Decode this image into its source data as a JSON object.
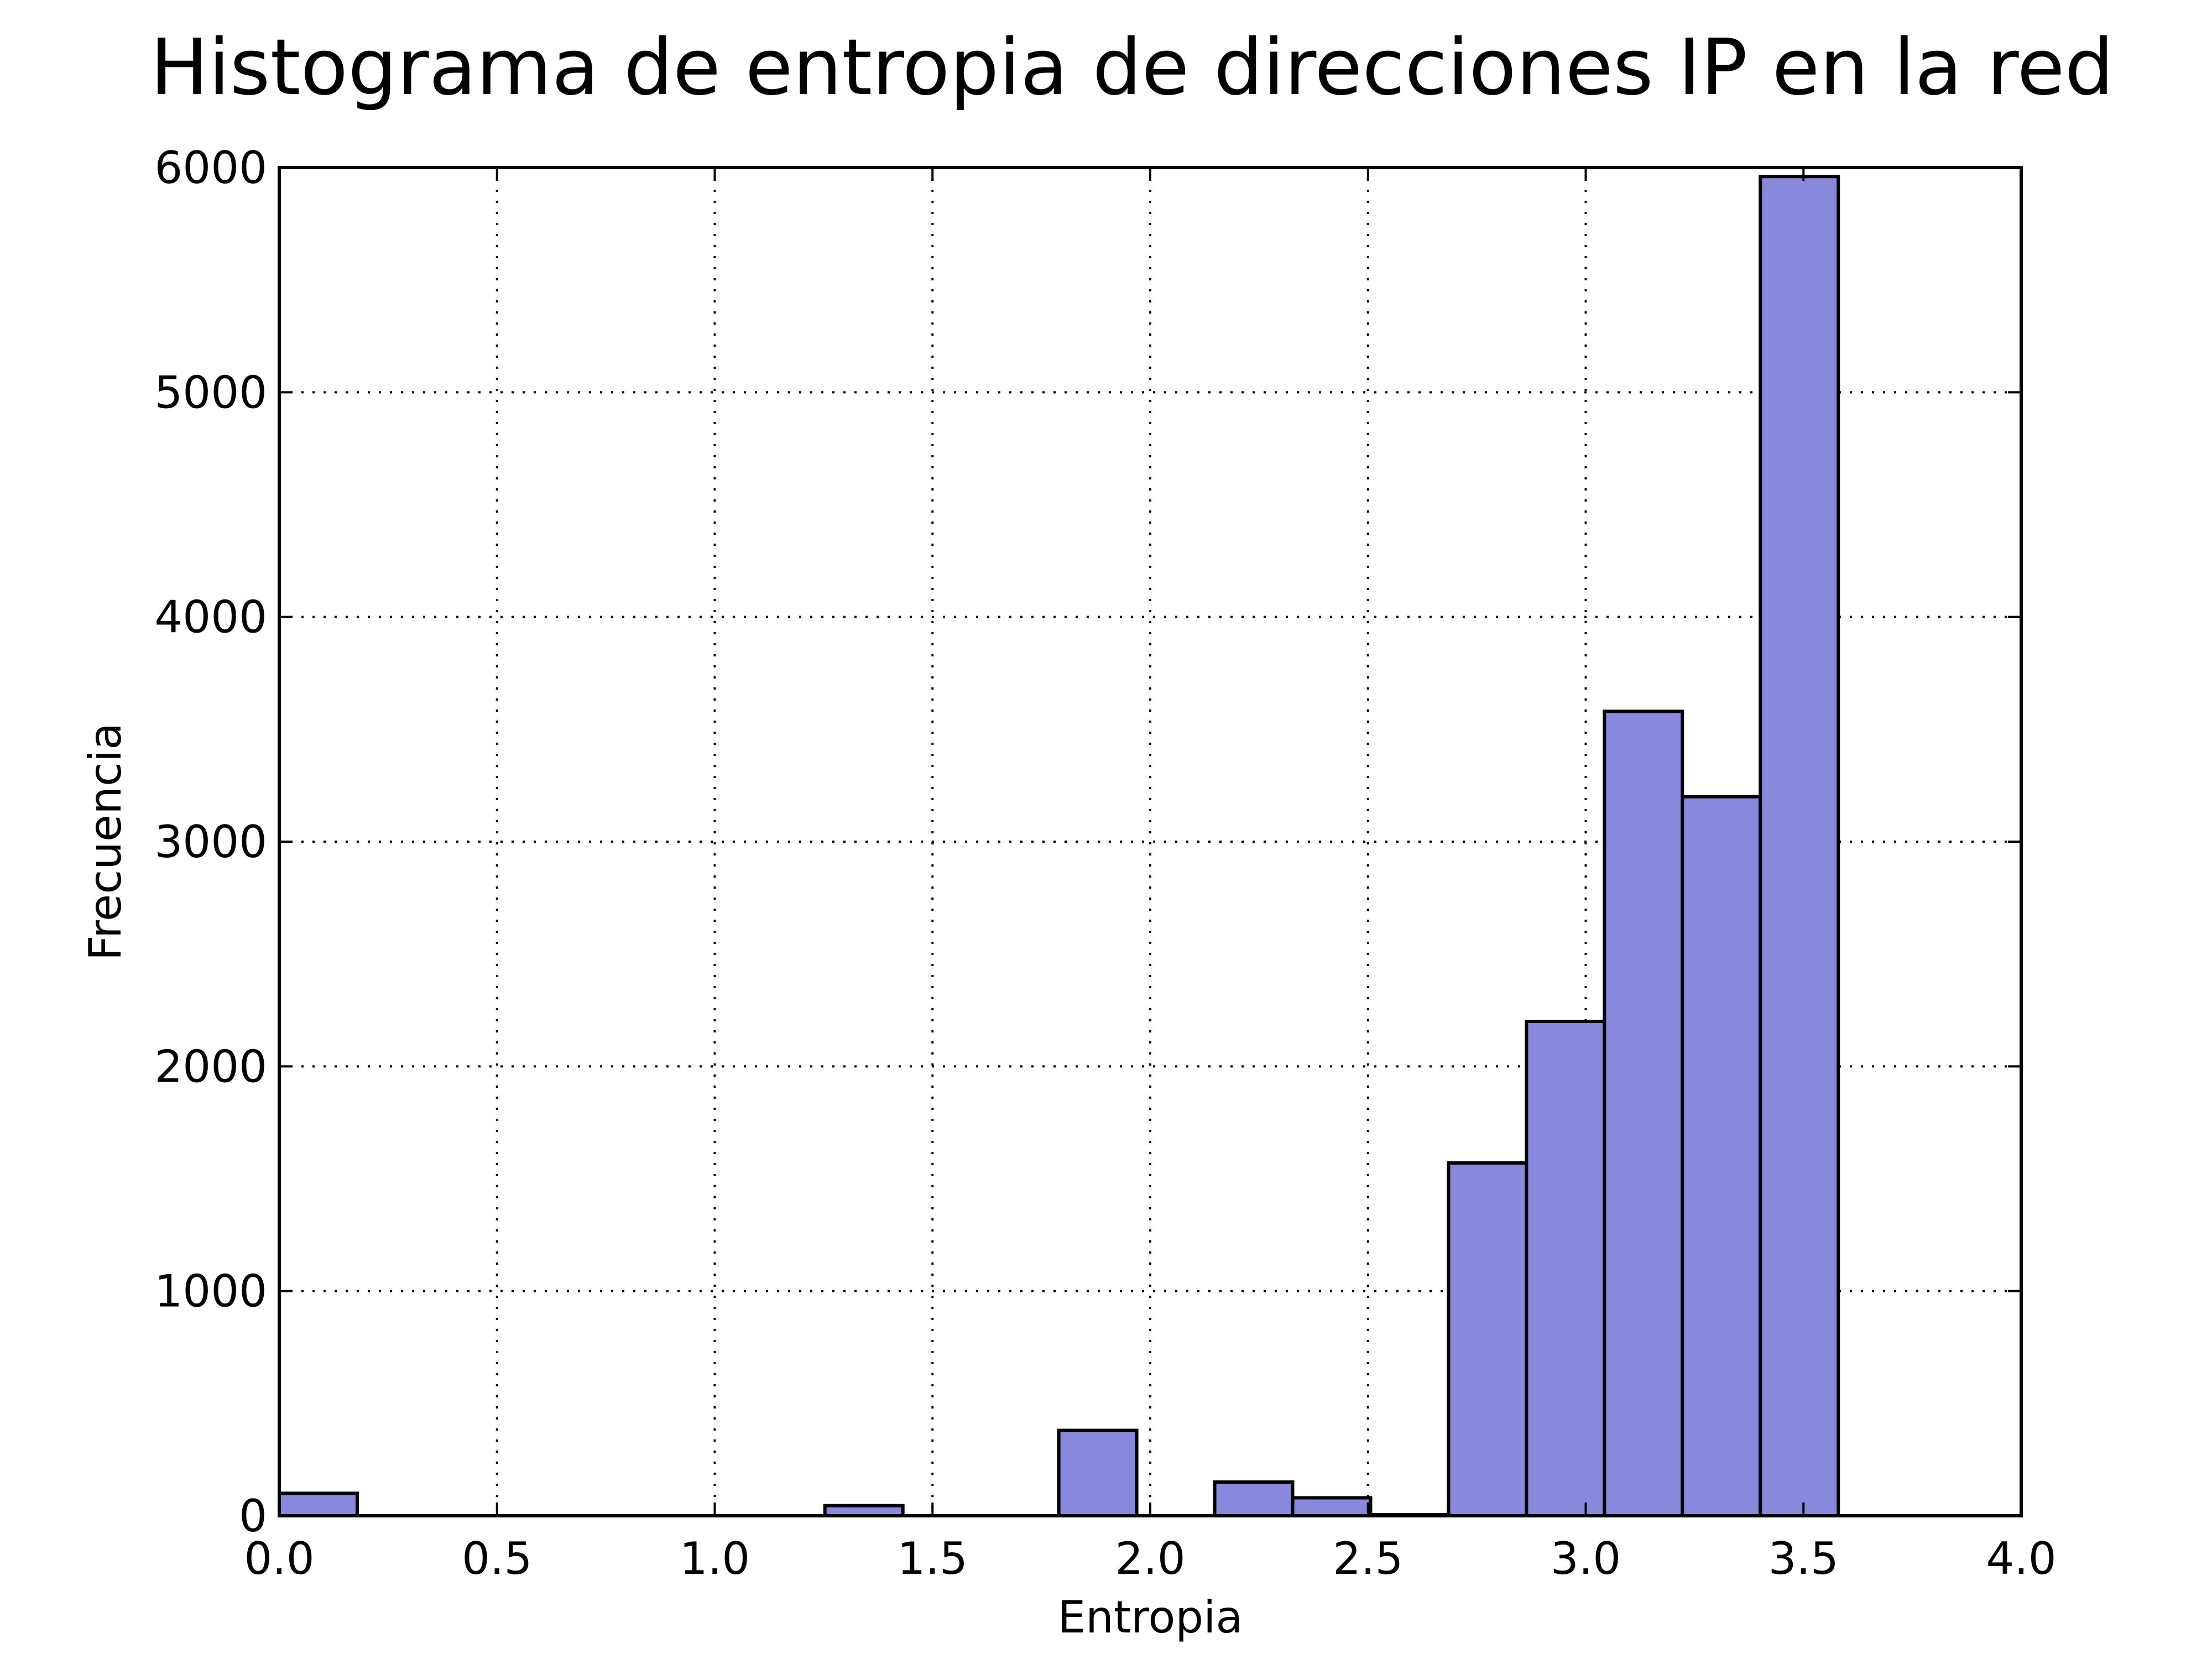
{
  "chart_data": {
    "type": "bar",
    "title": "Histograma de entropia de direcciones IP en la red",
    "xlabel": "Entropia",
    "ylabel": "Frecuencia",
    "xlim": [
      0.0,
      4.0
    ],
    "ylim": [
      0,
      6000
    ],
    "xticks": [
      "0.0",
      "0.5",
      "1.0",
      "1.5",
      "2.0",
      "2.5",
      "3.0",
      "3.5",
      "4.0"
    ],
    "yticks": [
      "0",
      "1000",
      "2000",
      "3000",
      "4000",
      "5000",
      "6000"
    ],
    "grid": true,
    "bar_color": "#8888dd",
    "edge_color": "#000000",
    "bin_edges": [
      0.0,
      0.179,
      0.358,
      0.537,
      0.716,
      0.895,
      1.074,
      1.253,
      1.432,
      1.611,
      1.79,
      1.969,
      2.148,
      2.327,
      2.506,
      2.685,
      2.864,
      3.043,
      3.222,
      3.401,
      3.58
    ],
    "values": [
      100,
      0,
      0,
      0,
      0,
      0,
      0,
      45,
      0,
      0,
      380,
      0,
      150,
      80,
      5,
      1570,
      2200,
      3580,
      3200,
      5960
    ]
  }
}
